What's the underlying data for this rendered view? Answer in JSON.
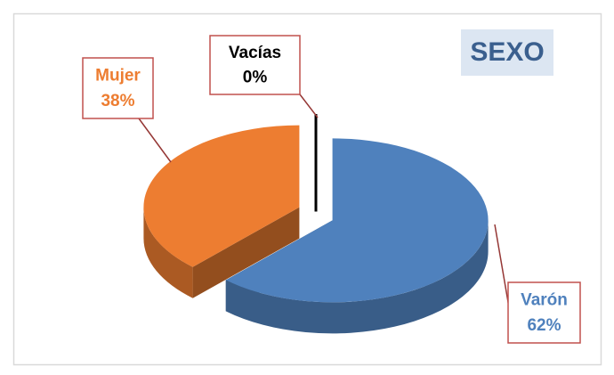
{
  "chart_data": {
    "type": "pie",
    "title": "SEXO",
    "categories": [
      "Varón",
      "Mujer",
      "Vacías"
    ],
    "values": [
      62,
      38,
      0
    ],
    "value_labels": [
      "62%",
      "38%",
      "0%"
    ],
    "colors": [
      "#4f81bd",
      "#ed7d31",
      "#000000"
    ]
  }
}
